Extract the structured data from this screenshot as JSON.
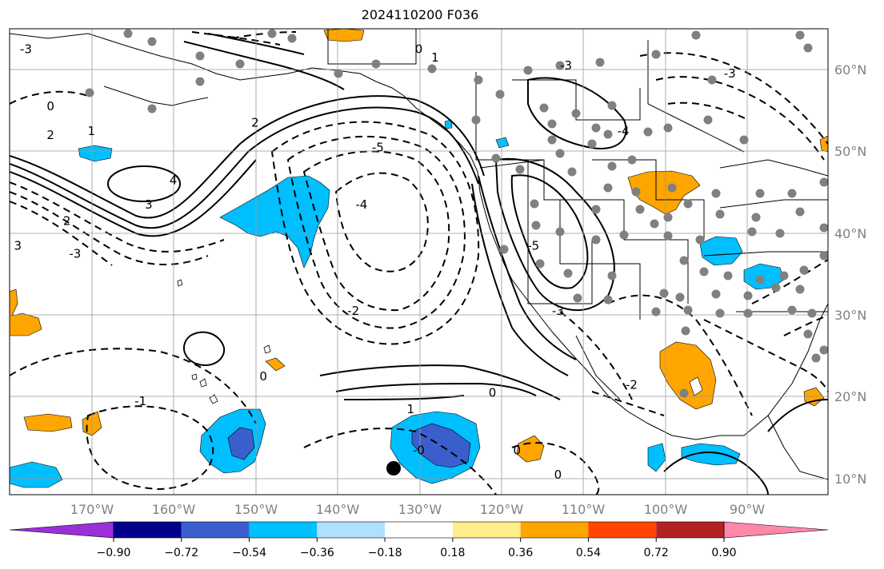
{
  "title": "2024110200 F036",
  "longitude_labels": [
    "170°W",
    "160°W",
    "150°W",
    "140°W",
    "130°W",
    "120°W",
    "110°W",
    "100°W",
    "90°W"
  ],
  "latitude_labels": [
    "60°N",
    "50°N",
    "40°N",
    "30°N",
    "20°N",
    "10°N"
  ],
  "colorbar": {
    "ticks": [
      "−0.90",
      "−0.72",
      "−0.54",
      "−0.36",
      "−0.18",
      "0.18",
      "0.36",
      "0.54",
      "0.72",
      "0.90"
    ],
    "colors": [
      "#9b30d9",
      "#00008b",
      "#3a5fcd",
      "#00bfff",
      "#b0e0ff",
      "#ffffff",
      "#ffec8b",
      "#ffa500",
      "#ff4500",
      "#b22222",
      "#ff88aa"
    ]
  },
  "contour_labels": [
    {
      "text": "-3",
      "lon": -178,
      "lat": 62
    },
    {
      "text": "0",
      "lon": -175,
      "lat": 55
    },
    {
      "text": "2",
      "lon": -175,
      "lat": 51.5
    },
    {
      "text": "1",
      "lon": -170,
      "lat": 52
    },
    {
      "text": "4",
      "lon": -160,
      "lat": 46
    },
    {
      "text": "3",
      "lon": -163,
      "lat": 43
    },
    {
      "text": "2",
      "lon": -173,
      "lat": 41
    },
    {
      "text": "3",
      "lon": -179,
      "lat": 38
    },
    {
      "text": "-3",
      "lon": -172,
      "lat": 37
    },
    {
      "text": "2",
      "lon": -150,
      "lat": 53
    },
    {
      "text": "-5",
      "lon": -135,
      "lat": 50
    },
    {
      "text": "-4",
      "lon": -137,
      "lat": 43
    },
    {
      "text": "-2",
      "lon": -138,
      "lat": 30
    },
    {
      "text": "-1",
      "lon": -164,
      "lat": 19
    },
    {
      "text": "0",
      "lon": -149,
      "lat": 22
    },
    {
      "text": "1",
      "lon": -131,
      "lat": 18
    },
    {
      "text": "0",
      "lon": -121,
      "lat": 20
    },
    {
      "text": "-0",
      "lon": -130,
      "lat": 13
    },
    {
      "text": "0",
      "lon": -118,
      "lat": 13
    },
    {
      "text": "0",
      "lon": -113,
      "lat": 10
    },
    {
      "text": "-3",
      "lon": -112,
      "lat": 60
    },
    {
      "text": "-4",
      "lon": -105,
      "lat": 52
    },
    {
      "text": "-5",
      "lon": -116,
      "lat": 38
    },
    {
      "text": "-3",
      "lon": -113,
      "lat": 30
    },
    {
      "text": "-2",
      "lon": -104,
      "lat": 21
    },
    {
      "text": "0",
      "lon": -130,
      "lat": 62
    },
    {
      "text": "1",
      "lon": -128,
      "lat": 61
    },
    {
      "text": "-3",
      "lon": -92,
      "lat": 59
    }
  ]
}
